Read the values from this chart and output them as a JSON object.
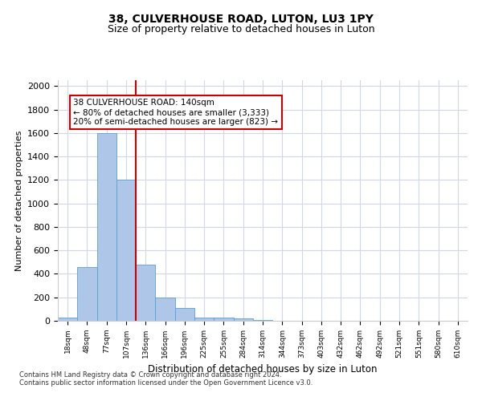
{
  "title1": "38, CULVERHOUSE ROAD, LUTON, LU3 1PY",
  "title2": "Size of property relative to detached houses in Luton",
  "xlabel": "Distribution of detached houses by size in Luton",
  "ylabel": "Number of detached properties",
  "footnote": "Contains HM Land Registry data © Crown copyright and database right 2024.\nContains public sector information licensed under the Open Government Licence v3.0.",
  "bin_labels": [
    "18sqm",
    "48sqm",
    "77sqm",
    "107sqm",
    "136sqm",
    "166sqm",
    "196sqm",
    "225sqm",
    "255sqm",
    "284sqm",
    "314sqm",
    "344sqm",
    "373sqm",
    "403sqm",
    "432sqm",
    "462sqm",
    "492sqm",
    "521sqm",
    "551sqm",
    "580sqm",
    "610sqm"
  ],
  "bar_values": [
    30,
    460,
    1600,
    1200,
    480,
    200,
    110,
    30,
    30,
    20,
    10,
    0,
    0,
    0,
    0,
    0,
    0,
    0,
    0,
    0,
    0
  ],
  "bar_color": "#aec6e8",
  "bar_edge_color": "#5a9fd4",
  "red_line_x": 4,
  "annotation_text": "38 CULVERHOUSE ROAD: 140sqm\n← 80% of detached houses are smaller (3,333)\n20% of semi-detached houses are larger (823) →",
  "annotation_box_color": "#ffffff",
  "annotation_border_color": "#cc0000",
  "ylim": [
    0,
    2050
  ],
  "yticks": [
    0,
    200,
    400,
    600,
    800,
    1000,
    1200,
    1400,
    1600,
    1800,
    2000
  ],
  "background_color": "#ffffff",
  "grid_color": "#d0d8e8",
  "title1_fontsize": 10,
  "title2_fontsize": 9
}
